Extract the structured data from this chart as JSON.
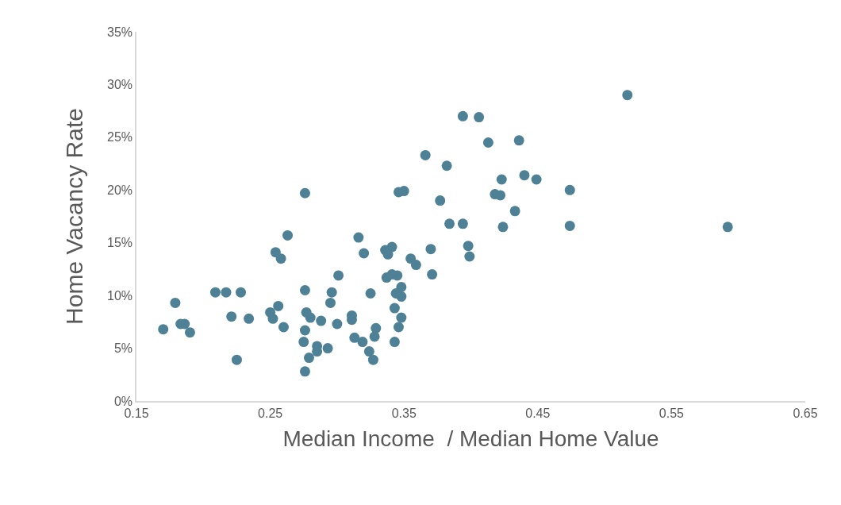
{
  "chart_data": {
    "type": "scatter",
    "xlabel": "Median Income  / Median Home Value",
    "ylabel": "Home Vacancy Rate",
    "marker": "circle",
    "grid": false,
    "xlim": [
      0.15,
      0.65
    ],
    "xticks": [
      {
        "value": 0.15,
        "label": "0.15"
      },
      {
        "value": 0.25,
        "label": "0.25"
      },
      {
        "value": 0.35,
        "label": "0.35"
      },
      {
        "value": 0.45,
        "label": "0.45"
      },
      {
        "value": 0.55,
        "label": "0.55"
      },
      {
        "value": 0.65,
        "label": "0.65"
      }
    ],
    "ylim": [
      0,
      35
    ],
    "yticks": [
      {
        "value": 0,
        "label": "0%"
      },
      {
        "value": 5,
        "label": "5%"
      },
      {
        "value": 10,
        "label": "10%"
      },
      {
        "value": 15,
        "label": "15%"
      },
      {
        "value": 20,
        "label": "20%"
      },
      {
        "value": 25,
        "label": "25%"
      },
      {
        "value": 30,
        "label": "30%"
      },
      {
        "value": 35,
        "label": "35%"
      }
    ],
    "series": [
      {
        "color": "#4f8196",
        "x": [
          0.17,
          0.179,
          0.183,
          0.186,
          0.19,
          0.209,
          0.217,
          0.228,
          0.221,
          0.234,
          0.225,
          0.25,
          0.252,
          0.256,
          0.26,
          0.254,
          0.258,
          0.263,
          0.276,
          0.276,
          0.277,
          0.28,
          0.288,
          0.276,
          0.275,
          0.279,
          0.285,
          0.285,
          0.276,
          0.293,
          0.295,
          0.296,
          0.301,
          0.3,
          0.311,
          0.311,
          0.313,
          0.319,
          0.324,
          0.327,
          0.328,
          0.329,
          0.316,
          0.32,
          0.325,
          0.336,
          0.338,
          0.341,
          0.337,
          0.341,
          0.345,
          0.344,
          0.348,
          0.348,
          0.343,
          0.348,
          0.346,
          0.343,
          0.346,
          0.35,
          0.355,
          0.359,
          0.366,
          0.37,
          0.371,
          0.377,
          0.382,
          0.384,
          0.394,
          0.394,
          0.398,
          0.399,
          0.406,
          0.413,
          0.418,
          0.422,
          0.423,
          0.424,
          0.433,
          0.436,
          0.44,
          0.449,
          0.474,
          0.474,
          0.517,
          0.592
        ],
        "values": [
          6.8,
          9.3,
          7.3,
          7.3,
          6.5,
          10.3,
          10.3,
          10.3,
          8.0,
          7.8,
          3.9,
          8.4,
          7.8,
          9.0,
          7.0,
          14.1,
          13.5,
          15.7,
          19.7,
          10.5,
          8.4,
          7.9,
          7.6,
          6.7,
          5.6,
          4.1,
          5.2,
          4.7,
          2.8,
          5.0,
          9.3,
          10.3,
          11.9,
          7.3,
          8.1,
          7.7,
          6.0,
          5.6,
          4.7,
          3.9,
          6.1,
          6.9,
          15.5,
          14.0,
          10.2,
          14.3,
          13.9,
          14.6,
          11.7,
          12.0,
          11.9,
          10.2,
          10.8,
          9.9,
          8.8,
          7.9,
          7.0,
          5.6,
          19.8,
          19.9,
          13.5,
          12.9,
          23.3,
          14.4,
          12.0,
          19.0,
          22.3,
          16.8,
          27.0,
          16.8,
          14.7,
          13.7,
          26.9,
          24.5,
          19.6,
          19.5,
          21.0,
          16.5,
          18.0,
          24.7,
          21.4,
          21.0,
          20.0,
          16.6,
          29.0,
          16.5
        ]
      }
    ]
  }
}
